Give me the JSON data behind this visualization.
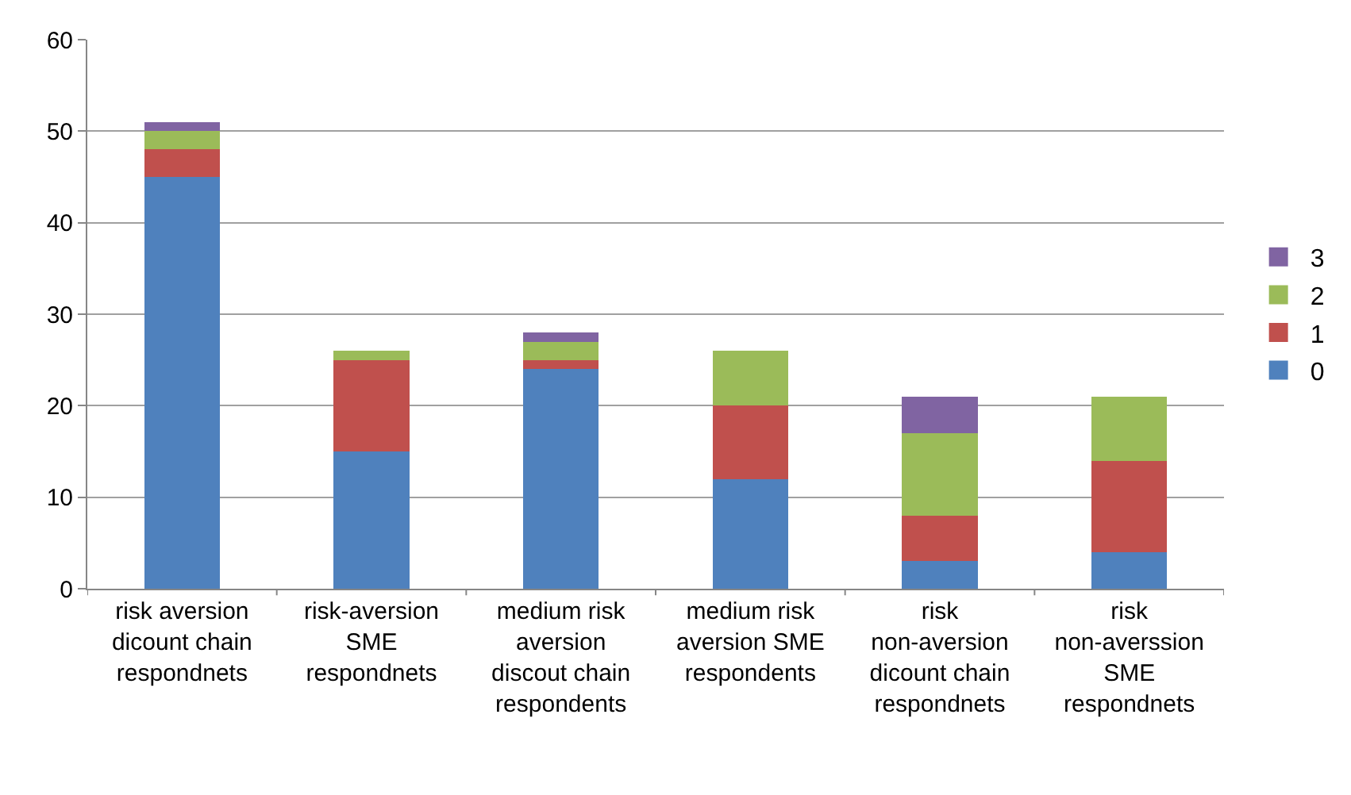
{
  "chart_data": {
    "type": "bar",
    "stacked": true,
    "categories": [
      "risk aversion dicount chain respondnets",
      "risk-aversion SME respondnets",
      "medium risk aversion discout chain respondents",
      "medium risk aversion SME respondents",
      "risk non-aversion dicount chain respondnets",
      "risk non-averssion SME respondnets"
    ],
    "series": [
      {
        "name": "0",
        "color": "#4f81bd",
        "values": [
          45,
          15,
          24,
          12,
          3,
          4
        ]
      },
      {
        "name": "1",
        "color": "#c0504d",
        "values": [
          3,
          10,
          1,
          8,
          5,
          10
        ]
      },
      {
        "name": "2",
        "color": "#9bbb59",
        "values": [
          2,
          1,
          2,
          6,
          9,
          7
        ]
      },
      {
        "name": "3",
        "color": "#8064a2",
        "values": [
          1,
          0,
          1,
          0,
          4,
          0
        ]
      }
    ],
    "ylim": [
      0,
      60
    ],
    "yticks": [
      0,
      10,
      20,
      30,
      40,
      50,
      60
    ],
    "grid": "y",
    "legend": "right"
  }
}
